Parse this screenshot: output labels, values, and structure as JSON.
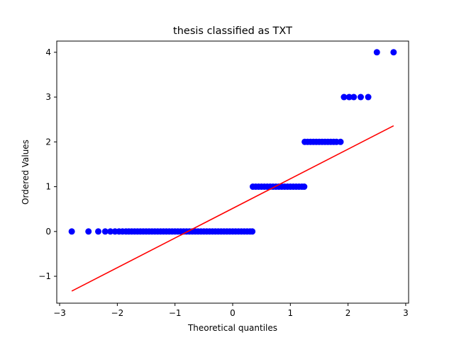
{
  "chart_data": {
    "type": "scatter",
    "title": "thesis classified as TXT",
    "xlabel": "Theoretical quantiles",
    "ylabel": "Ordered Values",
    "xlim": [
      -3.05,
      3.05
    ],
    "ylim": [
      -1.6,
      4.25
    ],
    "xticks": [
      -3,
      -2,
      -1,
      0,
      1,
      2,
      3
    ],
    "yticks": [
      -1,
      0,
      1,
      2,
      3,
      4
    ],
    "xtick_labels": [
      "−3",
      "−2",
      "−1",
      "0",
      "1",
      "2",
      "3"
    ],
    "ytick_labels": [
      "−1",
      "0",
      "1",
      "2",
      "3",
      "4"
    ],
    "grid": false,
    "point_color": "#0000ff",
    "line_color": "#ff0000",
    "points": [
      {
        "y": 0,
        "x": [
          -2.79,
          -2.5,
          -2.33,
          -2.21,
          -2.12,
          -2.04,
          -1.97,
          -1.91,
          -1.85,
          -1.8,
          -1.75,
          -1.7,
          -1.65,
          -1.6,
          -1.55,
          -1.5,
          -1.45,
          -1.4,
          -1.35,
          -1.3,
          -1.25,
          -1.2,
          -1.15,
          -1.1,
          -1.05,
          -1.0,
          -0.95,
          -0.9,
          -0.85,
          -0.8,
          -0.75,
          -0.7,
          -0.65,
          -0.6,
          -0.55,
          -0.5,
          -0.45,
          -0.4,
          -0.35,
          -0.3,
          -0.25,
          -0.2,
          -0.15,
          -0.1,
          -0.05,
          0.0,
          0.05,
          0.1,
          0.15,
          0.2,
          0.25,
          0.3,
          0.34
        ]
      },
      {
        "y": 1,
        "x": [
          0.35,
          0.4,
          0.45,
          0.5,
          0.55,
          0.6,
          0.65,
          0.7,
          0.75,
          0.8,
          0.85,
          0.9,
          0.95,
          1.0,
          1.05,
          1.1,
          1.15,
          1.2,
          1.24
        ]
      },
      {
        "y": 2,
        "x": [
          1.25,
          1.3,
          1.35,
          1.4,
          1.45,
          1.5,
          1.55,
          1.6,
          1.65,
          1.7,
          1.75,
          1.8,
          1.87
        ]
      },
      {
        "y": 3,
        "x": [
          1.93,
          2.02,
          2.1,
          2.22,
          2.35
        ]
      },
      {
        "y": 4,
        "x": [
          2.5,
          2.79
        ]
      }
    ],
    "fit_line": {
      "x": [
        -2.79,
        2.79
      ],
      "y": [
        -1.33,
        2.36
      ]
    }
  }
}
